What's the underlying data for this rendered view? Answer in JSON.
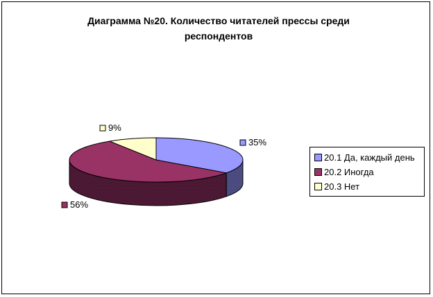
{
  "chart_data": {
    "type": "pie",
    "title": "Диаграмма №20. Количество читателей прессы среди респондентов",
    "title_lines": [
      "Диаграмма №20. Количество читателей прессы среди",
      "респондентов"
    ],
    "categories": [
      "20.1 Да, каждый день",
      "20.2 Иногда",
      "20.3 Нет"
    ],
    "values": [
      35,
      56,
      9
    ],
    "data_labels": [
      "35%",
      "56%",
      "9%"
    ],
    "colors": [
      "#9999FF",
      "#993366",
      "#FFFFCC"
    ],
    "shade_colors": [
      "#4F4F86",
      "#4F1A36",
      "#8A8A6C"
    ],
    "legend_position": "right",
    "style": "3d-pie"
  }
}
